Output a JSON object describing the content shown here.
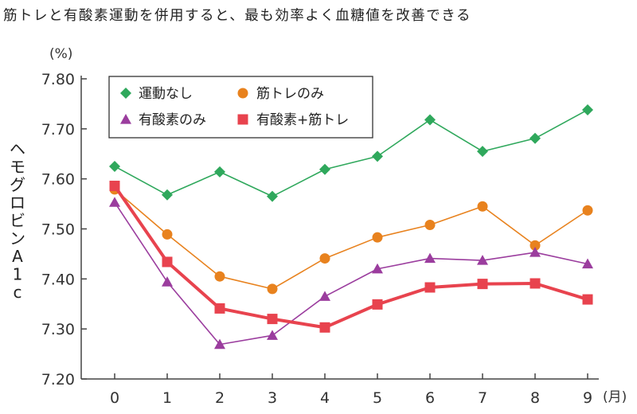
{
  "title": "筋トレと有酸素運動を併用すると、最も効率よく血糖値を改善できる",
  "chart_data": {
    "type": "line",
    "title": "筋トレと有酸素運動を併用すると、最も効率よく血糖値を改善できる",
    "ylabel": "ヘモグロビンA1c",
    "y_unit": "(%)",
    "x_unit": "(月)",
    "xlabel": "",
    "x": [
      0,
      1,
      2,
      3,
      4,
      5,
      6,
      7,
      8,
      9
    ],
    "ylim": [
      7.2,
      7.8
    ],
    "yticks": [
      "7.20",
      "7.30",
      "7.40",
      "7.50",
      "7.60",
      "7.70",
      "7.80"
    ],
    "legend_position": "top-left",
    "grid": false,
    "series": [
      {
        "name": "運動なし",
        "color": "#2fa85c",
        "marker": "diamond",
        "values": [
          7.625,
          7.568,
          7.614,
          7.565,
          7.619,
          7.645,
          7.718,
          7.655,
          7.681,
          7.738
        ]
      },
      {
        "name": "筋トレのみ",
        "color": "#e8821e",
        "marker": "circle",
        "values": [
          7.579,
          7.489,
          7.405,
          7.38,
          7.441,
          7.483,
          7.508,
          7.545,
          7.467,
          7.537
        ]
      },
      {
        "name": "有酸素のみ",
        "color": "#9b3d9e",
        "marker": "triangle",
        "values": [
          7.553,
          7.394,
          7.269,
          7.287,
          7.365,
          7.42,
          7.441,
          7.437,
          7.453,
          7.43
        ]
      },
      {
        "name": "有酸素+筋トレ",
        "color": "#e8434e",
        "marker": "square",
        "values": [
          7.586,
          7.434,
          7.341,
          7.32,
          7.303,
          7.349,
          7.383,
          7.39,
          7.391,
          7.359
        ]
      }
    ]
  }
}
